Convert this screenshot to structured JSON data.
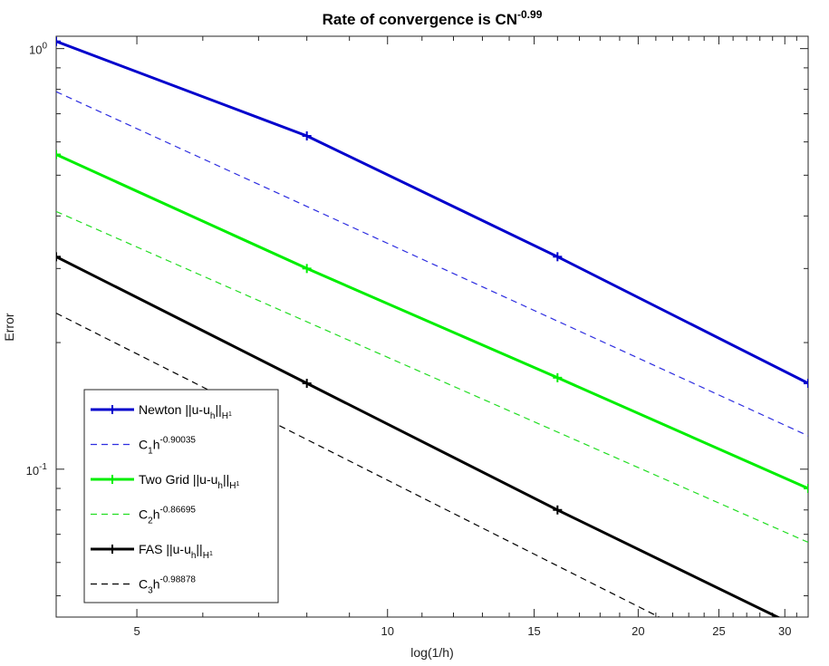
{
  "chart_data": {
    "type": "line",
    "title": {
      "base": "Rate of convergence is CN",
      "exponent": "-0.99"
    },
    "xlabel": "log(1/h)",
    "ylabel": "Error",
    "xscale": "log",
    "yscale": "log",
    "xlim": [
      4,
      32
    ],
    "ylim": [
      0.0445,
      1.07
    ],
    "xticks": [
      {
        "value": 5,
        "label": "5"
      },
      {
        "value": 10,
        "label": "10"
      },
      {
        "value": 15,
        "label": "15"
      },
      {
        "value": 20,
        "label": "20"
      },
      {
        "value": 25,
        "label": "25"
      },
      {
        "value": 30,
        "label": "30"
      }
    ],
    "yticks": [
      {
        "value": 0.1,
        "base": "10",
        "exponent": "-1"
      },
      {
        "value": 1,
        "base": "10",
        "exponent": "0"
      }
    ],
    "grid": false,
    "legend_position": "bottom-left",
    "series": [
      {
        "name": "Newton",
        "legend": {
          "prefix": "Newton ||u-u",
          "sub1": "h",
          "mid": "||",
          "sub2": "H",
          "sup": "1"
        },
        "color": "#0000cc",
        "style": "solid",
        "marker": "+",
        "width": 3,
        "x": [
          4,
          8,
          16,
          32
        ],
        "y": [
          1.04,
          0.62,
          0.32,
          0.16
        ]
      },
      {
        "name": "C1h^-0.90035",
        "legend": {
          "base": "C",
          "sub": "1",
          "mid": "h",
          "sup": "-0.90035"
        },
        "color": "#2e2ee0",
        "style": "dashed",
        "marker": "none",
        "width": 1.2,
        "x": [
          4,
          32
        ],
        "y": [
          0.79,
          0.12
        ]
      },
      {
        "name": "Two Grid",
        "legend": {
          "prefix": "Two Grid ||u-u",
          "sub1": "h",
          "mid": "||",
          "sub2": "H",
          "sup": "1"
        },
        "color": "#00ee00",
        "style": "solid",
        "marker": "+",
        "width": 3,
        "x": [
          4,
          8,
          16,
          32
        ],
        "y": [
          0.56,
          0.3,
          0.165,
          0.09
        ]
      },
      {
        "name": "C2h^-0.86695",
        "legend": {
          "base": "C",
          "sub": "2",
          "mid": "h",
          "sup": "-0.86695"
        },
        "color": "#22dd22",
        "style": "dashed",
        "marker": "none",
        "width": 1.2,
        "x": [
          4,
          32
        ],
        "y": [
          0.41,
          0.067
        ]
      },
      {
        "name": "FAS",
        "legend": {
          "prefix": "FAS ||u-u",
          "sub1": "h",
          "mid": "||",
          "sub2": "H",
          "sup": "1"
        },
        "color": "#000000",
        "style": "solid",
        "marker": "+",
        "width": 3,
        "x": [
          4,
          8,
          16,
          32
        ],
        "y": [
          0.32,
          0.16,
          0.08,
          0.041
        ]
      },
      {
        "name": "C3h^-0.98878",
        "legend": {
          "base": "C",
          "sub": "3",
          "mid": "h",
          "sup": "-0.98878"
        },
        "color": "#000000",
        "style": "dashed",
        "marker": "none",
        "width": 1.2,
        "x": [
          4,
          32
        ],
        "y": [
          0.235,
          0.0295
        ]
      }
    ]
  }
}
